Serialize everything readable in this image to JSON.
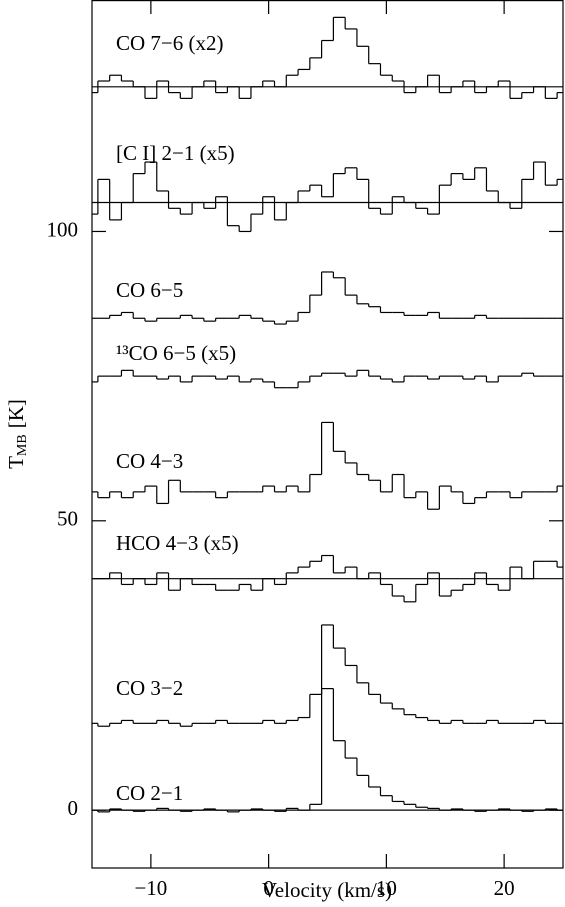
{
  "chart_data": {
    "type": "step",
    "xlabel": "Velocity (km/s)",
    "ylabel": [
      "T",
      "MB",
      "[K]"
    ],
    "xlim": [
      -15,
      25
    ],
    "ylim": [
      -10,
      140
    ],
    "xticks": [
      {
        "value": -10,
        "label": "−10"
      },
      0,
      10,
      20
    ],
    "yticks": [
      0,
      50,
      100
    ],
    "color": "#000000",
    "x": [
      -15,
      -14,
      -13,
      -12,
      -11,
      -10,
      -9,
      -8,
      -7,
      -6,
      -5,
      -4,
      -3,
      -2,
      -1,
      0,
      1,
      2,
      3,
      4,
      5,
      6,
      7,
      8,
      9,
      10,
      11,
      12,
      13,
      14,
      15,
      16,
      17,
      18,
      19,
      20,
      21,
      22,
      23,
      24,
      25
    ],
    "series": [
      {
        "name": "CO 7−6 (x2)",
        "baseline": 125,
        "values": [
          124,
          126,
          127,
          126,
          125,
          123,
          126,
          124,
          123,
          125,
          126,
          124,
          125,
          123,
          125,
          126,
          125,
          127,
          128,
          130,
          133,
          137,
          135,
          132,
          129,
          127,
          126,
          124,
          125,
          127,
          124,
          125,
          126,
          124,
          125,
          126,
          123,
          124,
          125,
          123,
          124
        ]
      },
      {
        "name": "[C I] 2−1 (x5)",
        "baseline": 105,
        "values": [
          103,
          109,
          102,
          105,
          110,
          112,
          107,
          104,
          103,
          105,
          104,
          106,
          101,
          100,
          103,
          106,
          102,
          105,
          107,
          108,
          106,
          110,
          111,
          109,
          104,
          103,
          106,
          105,
          104,
          103,
          108,
          110,
          109,
          111,
          107,
          105,
          104,
          109,
          112,
          108,
          109
        ]
      },
      {
        "name": "CO 6−5",
        "values": [
          85,
          85,
          85.5,
          86,
          85,
          84.5,
          85,
          85,
          85.5,
          85,
          84.5,
          85,
          85,
          85.5,
          85,
          84.5,
          84,
          84.5,
          86,
          89,
          93,
          92,
          89,
          87.5,
          87,
          86,
          86,
          85.5,
          85.5,
          86,
          85,
          85,
          85,
          85.5,
          85,
          85,
          85,
          85,
          85,
          85,
          85
        ]
      },
      {
        "name": "¹³CO 6−5 (x5)",
        "values": [
          74,
          75,
          75,
          76,
          75,
          75,
          74.5,
          75,
          74,
          75,
          75,
          74.5,
          75,
          74,
          74.5,
          74,
          73,
          73,
          74,
          75,
          75.5,
          75.5,
          75,
          76,
          75,
          74.5,
          74,
          75,
          75,
          74.5,
          75,
          75,
          74.5,
          75,
          74,
          75,
          75,
          75.5,
          75,
          75,
          75
        ]
      },
      {
        "name": "CO 4−3",
        "values": [
          55,
          54,
          55,
          54,
          55,
          56,
          53,
          57,
          55,
          55,
          55,
          54,
          55,
          55,
          55,
          56,
          55,
          56,
          55,
          58,
          67,
          62,
          60,
          58,
          57,
          55,
          58,
          54,
          55,
          52,
          56,
          55,
          53,
          54,
          55,
          55,
          54,
          55,
          55,
          55,
          56
        ]
      },
      {
        "name": "HCO 4−3 (x5)",
        "baseline": 40,
        "values": [
          40,
          40,
          41,
          39,
          40,
          39,
          41,
          38,
          40,
          39,
          39,
          38,
          38,
          39,
          38,
          40,
          39,
          41,
          42,
          43,
          44,
          41,
          42,
          40,
          41,
          39,
          37,
          36,
          39,
          41,
          37,
          38,
          39,
          41,
          39,
          38,
          42,
          40,
          43,
          43,
          42
        ]
      },
      {
        "name": "CO 3−2",
        "values": [
          15,
          14.5,
          15,
          15.5,
          15,
          15,
          15.5,
          15,
          14.5,
          15,
          15,
          15.5,
          15,
          15,
          15,
          15.5,
          15,
          15.5,
          16,
          20,
          32,
          28,
          25,
          22,
          20,
          18.5,
          17.5,
          16.5,
          16,
          15.5,
          15,
          15.5,
          15,
          15,
          15.5,
          15,
          15,
          15,
          15.5,
          15,
          15
        ]
      },
      {
        "name": "CO 2−1",
        "baseline": 0,
        "values": [
          0,
          -0.3,
          0.2,
          0,
          -0.2,
          0,
          0.3,
          0,
          -0.2,
          0,
          0.2,
          0,
          -0.3,
          0,
          0.2,
          0,
          -0.2,
          0.3,
          0,
          1,
          21,
          12,
          9,
          6,
          4,
          2.5,
          1.5,
          1,
          0.5,
          0.3,
          0,
          0.2,
          0,
          -0.2,
          0,
          0.2,
          0,
          -0.2,
          0,
          0.2,
          0
        ]
      }
    ]
  }
}
